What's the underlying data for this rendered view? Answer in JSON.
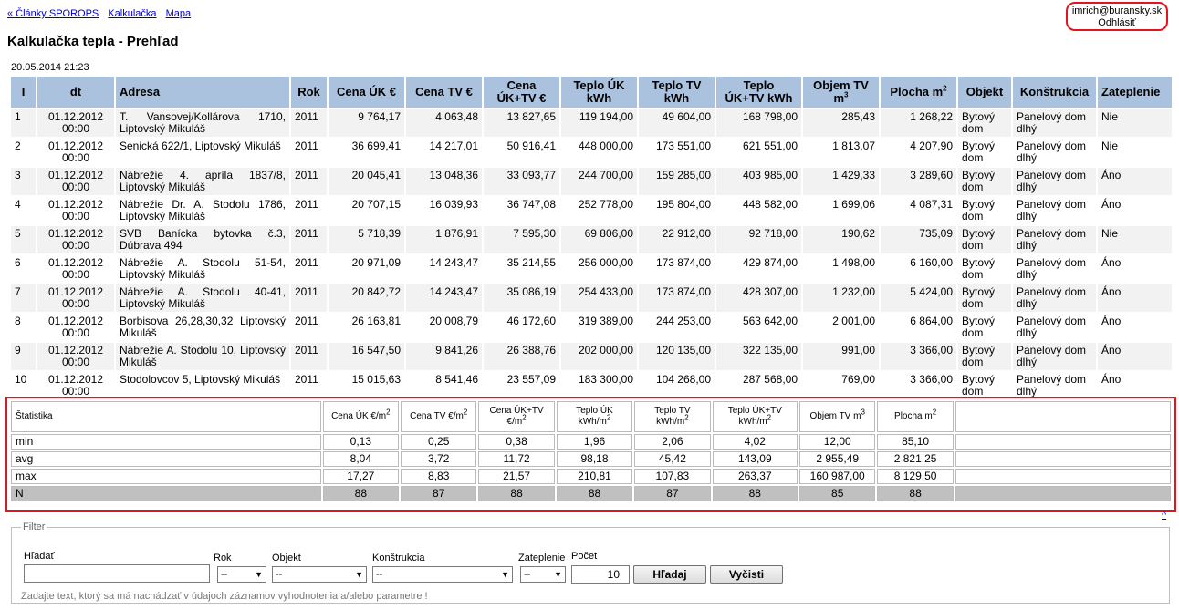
{
  "nav": {
    "links": [
      "« Články SPOROPS",
      "Kalkulačka",
      "Mapa"
    ]
  },
  "user": {
    "email": "imrich@buransky.sk",
    "logout": "Odhlásiť"
  },
  "page_title": "Kalkulačka tepla - Prehľad",
  "datestamp": "20.05.2014 21:23",
  "table": {
    "headers": [
      "I",
      "dt",
      "Adresa",
      "Rok",
      "Cena ÚK €",
      "Cena TV €",
      "Cena ÚK+TV €",
      "Teplo ÚK kWh",
      "Teplo TV kWh",
      "Teplo ÚK+TV kWh",
      "Objem TV m3",
      "Plocha m2",
      "Objekt",
      "Konštrukcia",
      "Zateplenie"
    ],
    "rows": [
      [
        "1",
        "01.12.2012 00:00",
        "T. Vansovej/Kollárova 1710, Liptovský Mikuláš",
        "2011",
        "9 764,17",
        "4 063,48",
        "13 827,65",
        "119 194,00",
        "49 604,00",
        "168 798,00",
        "285,43",
        "1 268,22",
        "Bytový dom",
        "Panelový dom dlhý",
        "Nie"
      ],
      [
        "2",
        "01.12.2012 00:00",
        "Senická 622/1, Liptovský Mikuláš",
        "2011",
        "36 699,41",
        "14 217,01",
        "50 916,41",
        "448 000,00",
        "173 551,00",
        "621 551,00",
        "1 813,07",
        "4 207,90",
        "Bytový dom",
        "Panelový dom dlhý",
        "Nie"
      ],
      [
        "3",
        "01.12.2012 00:00",
        "Nábrežie 4. apríla 1837/8, Liptovský Mikuláš",
        "2011",
        "20 045,41",
        "13 048,36",
        "33 093,77",
        "244 700,00",
        "159 285,00",
        "403 985,00",
        "1 429,33",
        "3 289,60",
        "Bytový dom",
        "Panelový dom dlhý",
        "Áno"
      ],
      [
        "4",
        "01.12.2012 00:00",
        "Nábrežie Dr. A. Stodolu 1786, Liptovský Mikuláš",
        "2011",
        "20 707,15",
        "16 039,93",
        "36 747,08",
        "252 778,00",
        "195 804,00",
        "448 582,00",
        "1 699,06",
        "4 087,31",
        "Bytový dom",
        "Panelový dom dlhý",
        "Áno"
      ],
      [
        "5",
        "01.12.2012 00:00",
        "SVB Banícka bytovka č.3, Dúbrava 494",
        "2011",
        "5 718,39",
        "1 876,91",
        "7 595,30",
        "69 806,00",
        "22 912,00",
        "92 718,00",
        "190,62",
        "735,09",
        "Bytový dom",
        "Panelový dom dlhý",
        "Nie"
      ],
      [
        "6",
        "01.12.2012 00:00",
        "Nábrežie A. Stodolu 51-54, Liptovský Mikuláš",
        "2011",
        "20 971,09",
        "14 243,47",
        "35 214,55",
        "256 000,00",
        "173 874,00",
        "429 874,00",
        "1 498,00",
        "6 160,00",
        "Bytový dom",
        "Panelový dom dlhý",
        "Áno"
      ],
      [
        "7",
        "01.12.2012 00:00",
        "Nábrežie A. Stodolu 40-41, Liptovský Mikuláš",
        "2011",
        "20 842,72",
        "14 243,47",
        "35 086,19",
        "254 433,00",
        "173 874,00",
        "428 307,00",
        "1 232,00",
        "5 424,00",
        "Bytový dom",
        "Panelový dom dlhý",
        "Áno"
      ],
      [
        "8",
        "01.12.2012 00:00",
        "Borbisova 26,28,30,32 Liptovský Mikuláš",
        "2011",
        "26 163,81",
        "20 008,79",
        "46 172,60",
        "319 389,00",
        "244 253,00",
        "563 642,00",
        "2 001,00",
        "6 864,00",
        "Bytový dom",
        "Panelový dom dlhý",
        "Áno"
      ],
      [
        "9",
        "01.12.2012 00:00",
        "Nábrežie A. Stodolu 10, Liptovský Mikuláš",
        "2011",
        "16 547,50",
        "9 841,26",
        "26 388,76",
        "202 000,00",
        "120 135,00",
        "322 135,00",
        "991,00",
        "3 366,00",
        "Bytový dom",
        "Panelový dom dlhý",
        "Áno"
      ],
      [
        "10",
        "01.12.2012 00:00",
        "Stodolovcov 5, Liptovský Mikuláš",
        "2011",
        "15 015,63",
        "8 541,46",
        "23 557,09",
        "183 300,00",
        "104 268,00",
        "287 568,00",
        "769,00",
        "3 366,00",
        "Bytový dom",
        "Panelový dom dlhý",
        "Áno"
      ]
    ]
  },
  "stats": {
    "headers": [
      "Štatistika",
      "Cena ÚK €/m2",
      "Cena TV €/m2",
      "Cena ÚK+TV €/m2",
      "Teplo ÚK kWh/m2",
      "Teplo TV kWh/m2",
      "Teplo ÚK+TV kWh/m2",
      "Objem TV m3",
      "Plocha m2",
      ""
    ],
    "rows": [
      [
        "min",
        "0,13",
        "0,25",
        "0,38",
        "1,96",
        "2,06",
        "4,02",
        "12,00",
        "85,10",
        ""
      ],
      [
        "avg",
        "8,04",
        "3,72",
        "11,72",
        "98,18",
        "45,42",
        "143,09",
        "2 955,49",
        "2 821,25",
        ""
      ],
      [
        "max",
        "17,27",
        "8,83",
        "21,57",
        "210,81",
        "107,83",
        "263,37",
        "160 987,00",
        "8 129,50",
        ""
      ],
      [
        "N",
        "88",
        "87",
        "88",
        "88",
        "87",
        "88",
        "85",
        "88",
        ""
      ]
    ]
  },
  "back_to_top": "^",
  "filter": {
    "legend": "Filter",
    "search_label": "Hľadať",
    "search_value": "",
    "rok_label": "Rok",
    "rok_value": "--",
    "objekt_label": "Objekt",
    "objekt_value": "--",
    "konstrukcia_label": "Konštrukcia",
    "konstrukcia_value": "--",
    "zateplenie_label": "Zateplenie",
    "zateplenie_value": "--",
    "pocet_label": "Počet",
    "pocet_value": "10",
    "search_button": "Hľadaj",
    "clear_button": "Vyčisti",
    "hint": "Zadajte text, ktorý sa má nachádzať v údajoch záznamov vyhodnotenia a/alebo parametre !"
  },
  "colors": {
    "header_bg": "#abc2df",
    "highlight": "#e3141e",
    "odd_row": "#f2f2f2",
    "n_row": "#c0c0c0"
  }
}
